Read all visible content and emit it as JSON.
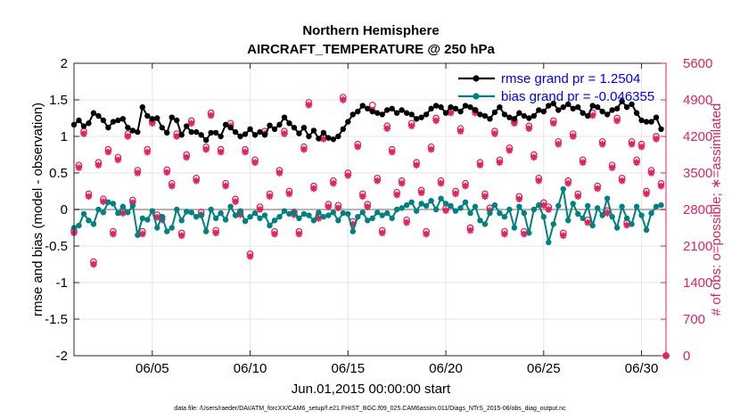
{
  "chart_data": {
    "type": "line",
    "title": "Northern Hemisphere",
    "subtitle": "AIRCRAFT_TEMPERATURE @ 250 hPa",
    "xlabel": "Jun.01,2015 00:00:00 start",
    "ylabel": "rmse and bias (model - observation)",
    "y2label": "# of obs: o=possible; ∗=assimilated",
    "footnote": "data file: /Users/raeder/DAI/ATM_forcXX/CAM6_setup/f.e21.FHIST_BGC.f09_025.CAM6assim.011/Diags_NTrS_2015-06/obs_diag_output.nc",
    "xlim": [
      1.0,
      31.25
    ],
    "ylim": [
      -2,
      2
    ],
    "y2lim": [
      0,
      5600
    ],
    "x_ticks": [
      5,
      10,
      15,
      20,
      25,
      30
    ],
    "x_tick_labels": [
      "06/05",
      "06/10",
      "06/15",
      "06/20",
      "06/25",
      "06/30"
    ],
    "y_ticks": [
      -2,
      -1.5,
      -1,
      -0.5,
      0,
      0.5,
      1,
      1.5,
      2
    ],
    "y_tick_labels": [
      "-2",
      "-1.5",
      "-1",
      "-0.5",
      "0",
      "0.5",
      "1",
      "1.5",
      "2"
    ],
    "y2_ticks": [
      0,
      700,
      1400,
      2100,
      2800,
      3500,
      4200,
      4900,
      5600
    ],
    "y2_tick_labels": [
      "0",
      "700",
      "1400",
      "2100",
      "2800",
      "3500",
      "4200",
      "4900",
      "5600"
    ],
    "grid": true,
    "legend_position": "top-right",
    "colors": {
      "rmse": "#000000",
      "bias": "#008080",
      "obs": "#e0245e",
      "zero_line": "#b4b4b4"
    },
    "series": [
      {
        "name": "rmse grand pr = 1.2504",
        "axis": "left",
        "color": "#000000",
        "x": [
          1.0,
          1.25,
          1.5,
          1.75,
          2.0,
          2.25,
          2.5,
          2.75,
          3.0,
          3.25,
          3.5,
          3.75,
          4.0,
          4.25,
          4.5,
          4.75,
          5.0,
          5.25,
          5.5,
          5.75,
          6.0,
          6.25,
          6.5,
          6.75,
          7.0,
          7.25,
          7.5,
          7.75,
          8.0,
          8.25,
          8.5,
          8.75,
          9.0,
          9.25,
          9.5,
          9.75,
          10.0,
          10.25,
          10.5,
          10.75,
          11.0,
          11.25,
          11.5,
          11.75,
          12.0,
          12.25,
          12.5,
          12.75,
          13.0,
          13.25,
          13.5,
          13.75,
          14.0,
          14.25,
          14.5,
          14.75,
          15.0,
          15.25,
          15.5,
          15.75,
          16.0,
          16.25,
          16.5,
          16.75,
          17.0,
          17.25,
          17.5,
          17.75,
          18.0,
          18.25,
          18.5,
          18.75,
          19.0,
          19.25,
          19.5,
          19.75,
          20.0,
          20.25,
          20.5,
          20.75,
          21.0,
          21.25,
          21.5,
          21.75,
          22.0,
          22.25,
          22.5,
          22.75,
          23.0,
          23.25,
          23.5,
          23.75,
          24.0,
          24.25,
          24.5,
          24.75,
          25.0,
          25.25,
          25.5,
          25.75,
          26.0,
          26.25,
          26.5,
          26.75,
          27.0,
          27.25,
          27.5,
          27.75,
          28.0,
          28.25,
          28.5,
          28.75,
          29.0,
          29.25,
          29.5,
          29.75,
          30.0,
          30.25,
          30.5,
          30.75,
          31.0
        ],
        "values": [
          1.16,
          1.22,
          1.14,
          1.18,
          1.32,
          1.28,
          1.22,
          1.12,
          1.2,
          1.22,
          1.24,
          1.12,
          1.08,
          1.06,
          1.4,
          1.28,
          1.24,
          1.25,
          1.12,
          1.05,
          1.26,
          1.22,
          1.02,
          1.14,
          1.06,
          1.06,
          1.02,
          0.95,
          1.05,
          1.05,
          1.0,
          1.16,
          1.12,
          1.06,
          1.0,
          1.03,
          1.1,
          1.02,
          1.06,
          1.02,
          1.15,
          1.1,
          1.16,
          1.26,
          1.18,
          1.12,
          1.04,
          1.12,
          1.0,
          1.08,
          0.97,
          1.05,
          0.98,
          0.96,
          1.0,
          1.1,
          1.2,
          1.3,
          1.34,
          1.42,
          1.38,
          1.34,
          1.32,
          1.3,
          1.36,
          1.38,
          1.32,
          1.36,
          1.32,
          1.3,
          1.24,
          1.26,
          1.3,
          1.38,
          1.42,
          1.4,
          1.32,
          1.4,
          1.38,
          1.34,
          1.42,
          1.4,
          1.36,
          1.3,
          1.28,
          1.24,
          1.33,
          1.4,
          1.3,
          1.26,
          1.24,
          1.32,
          1.28,
          1.25,
          1.28,
          1.36,
          1.34,
          1.42,
          1.45,
          1.36,
          1.4,
          1.44,
          1.38,
          1.4,
          1.32,
          1.28,
          1.42,
          1.4,
          1.34,
          1.3,
          1.36,
          1.38,
          1.48,
          1.4,
          1.44,
          1.32,
          1.22,
          1.2,
          1.2,
          1.26,
          1.1
        ]
      },
      {
        "name": "bias grand pr = -0.046355",
        "axis": "left",
        "color": "#008080",
        "x": [
          1.0,
          1.25,
          1.5,
          1.75,
          2.0,
          2.25,
          2.5,
          2.75,
          3.0,
          3.25,
          3.5,
          3.75,
          4.0,
          4.25,
          4.5,
          4.75,
          5.0,
          5.25,
          5.5,
          5.75,
          6.0,
          6.25,
          6.5,
          6.75,
          7.0,
          7.25,
          7.5,
          7.75,
          8.0,
          8.25,
          8.5,
          8.75,
          9.0,
          9.25,
          9.5,
          9.75,
          10.0,
          10.25,
          10.5,
          10.75,
          11.0,
          11.25,
          11.5,
          11.75,
          12.0,
          12.25,
          12.5,
          12.75,
          13.0,
          13.25,
          13.5,
          13.75,
          14.0,
          14.25,
          14.5,
          14.75,
          15.0,
          15.25,
          15.5,
          15.75,
          16.0,
          16.25,
          16.5,
          16.75,
          17.0,
          17.25,
          17.5,
          17.75,
          18.0,
          18.25,
          18.5,
          18.75,
          19.0,
          19.25,
          19.5,
          19.75,
          20.0,
          20.25,
          20.5,
          20.75,
          21.0,
          21.25,
          21.5,
          21.75,
          22.0,
          22.25,
          22.5,
          22.75,
          23.0,
          23.25,
          23.5,
          23.75,
          24.0,
          24.25,
          24.5,
          24.75,
          25.0,
          25.25,
          25.5,
          25.75,
          26.0,
          26.25,
          26.5,
          26.75,
          27.0,
          27.25,
          27.5,
          27.75,
          28.0,
          28.25,
          28.5,
          28.75,
          29.0,
          29.25,
          29.5,
          29.75,
          30.0,
          30.25,
          30.5,
          30.75,
          31.0
        ],
        "values": [
          -0.25,
          -0.22,
          -0.06,
          -0.15,
          -0.2,
          0.0,
          -0.04,
          0.1,
          0.08,
          -0.05,
          0.04,
          -0.04,
          0.05,
          -0.35,
          -0.12,
          -0.14,
          -0.02,
          -0.25,
          -0.1,
          -0.3,
          -0.25,
          0.0,
          -0.15,
          -0.03,
          -0.04,
          -0.1,
          -0.08,
          -0.3,
          0.0,
          -0.12,
          -0.05,
          -0.14,
          0.04,
          -0.08,
          -0.02,
          -0.16,
          -0.1,
          -0.05,
          -0.12,
          -0.08,
          -0.22,
          -0.15,
          -0.1,
          -0.02,
          -0.06,
          -0.04,
          -0.12,
          -0.06,
          -0.08,
          -0.15,
          -0.04,
          -0.1,
          -0.08,
          -0.04,
          -0.15,
          -0.05,
          -0.06,
          -0.3,
          -0.1,
          -0.04,
          -0.15,
          -0.12,
          -0.04,
          -0.08,
          -0.05,
          -0.12,
          0.0,
          0.02,
          0.06,
          0.1,
          -0.02,
          0.08,
          0.05,
          0.12,
          0.0,
          0.15,
          0.08,
          0.05,
          -0.02,
          0.02,
          0.1,
          -0.05,
          0.04,
          -0.15,
          -0.2,
          -0.05,
          0.06,
          -0.05,
          -0.1,
          0.0,
          -0.25,
          0.04,
          -0.05,
          -0.32,
          0.0,
          0.06,
          -0.1,
          -0.45,
          -0.2,
          0.05,
          0.28,
          -0.15,
          0.08,
          -0.06,
          -0.12,
          0.05,
          -0.22,
          0.02,
          -0.08,
          0.15,
          -0.1,
          -0.25,
          0.04,
          -0.12,
          -0.2,
          0.04,
          -0.08,
          -0.28,
          -0.05,
          0.04,
          0.06
        ]
      }
    ],
    "obs_counts": {
      "axis": "right",
      "x": [
        1.0,
        1.25,
        1.5,
        1.75,
        2.0,
        2.25,
        2.5,
        2.75,
        3.0,
        3.25,
        3.5,
        3.75,
        4.0,
        4.25,
        4.5,
        4.75,
        5.0,
        5.25,
        5.5,
        5.75,
        6.0,
        6.25,
        6.5,
        6.75,
        7.0,
        7.25,
        7.5,
        7.75,
        8.0,
        8.25,
        8.5,
        8.75,
        9.0,
        9.25,
        9.5,
        9.75,
        10.0,
        10.25,
        10.5,
        10.75,
        11.0,
        11.25,
        11.5,
        11.75,
        12.0,
        12.25,
        12.5,
        12.75,
        13.0,
        13.25,
        13.5,
        13.75,
        14.0,
        14.25,
        14.5,
        14.75,
        15.0,
        15.25,
        15.5,
        15.75,
        16.0,
        16.25,
        16.5,
        16.75,
        17.0,
        17.25,
        17.5,
        17.75,
        18.0,
        18.25,
        18.5,
        18.75,
        19.0,
        19.25,
        19.5,
        19.75,
        20.0,
        20.25,
        20.5,
        20.75,
        21.0,
        21.25,
        21.5,
        21.75,
        22.0,
        22.25,
        22.5,
        22.75,
        23.0,
        23.25,
        23.5,
        23.75,
        24.0,
        24.25,
        24.5,
        24.75,
        25.0,
        25.25,
        25.5,
        25.75,
        26.0,
        26.25,
        26.5,
        26.75,
        27.0,
        27.25,
        27.5,
        27.75,
        28.0,
        28.25,
        28.5,
        28.75,
        29.0,
        29.25,
        29.5,
        29.75,
        30.0,
        30.25,
        30.5,
        30.75,
        31.0
      ],
      "possible": [
        2400,
        3650,
        4300,
        3100,
        1800,
        3700,
        3000,
        3950,
        2380,
        3800,
        2780,
        4250,
        2980,
        3550,
        2380,
        3950,
        4500,
        2700,
        2650,
        3560,
        3300,
        4250,
        2350,
        3850,
        4500,
        3400,
        2750,
        4000,
        4650,
        2400,
        3950,
        3300,
        4450,
        3000,
        2750,
        3950,
        1950,
        3750,
        2850,
        4300,
        3100,
        2380,
        3550,
        4300,
        3150,
        2750,
        2380,
        4000,
        4850,
        3250,
        2680,
        4200,
        2900,
        3350,
        2880,
        4950,
        3500,
        2570,
        4050,
        3100,
        2900,
        4800,
        3400,
        2400,
        4400,
        3950,
        3130,
        3350,
        2600,
        4450,
        3700,
        3170,
        2380,
        4000,
        4550,
        3350,
        2830,
        4700,
        3150,
        4350,
        3300,
        2450,
        4700,
        3700,
        3100,
        2830,
        4300,
        3750,
        2380,
        3980,
        4500,
        3050,
        2380,
        4400,
        3850,
        3400,
        2930,
        2850,
        4500,
        4100,
        2350,
        3350,
        4250,
        3100,
        3750,
        2600,
        4650,
        3250,
        4100,
        2780,
        3650,
        4550,
        3400,
        2550,
        4100,
        3750,
        4050,
        3150,
        3550,
        4200,
        3300
      ],
      "assimilated": [
        2350,
        3600,
        4250,
        3050,
        1750,
        3650,
        2950,
        3900,
        2330,
        3750,
        2730,
        4200,
        2930,
        3500,
        2330,
        3900,
        4450,
        2650,
        2600,
        3510,
        3250,
        4200,
        2300,
        3800,
        4450,
        3350,
        2700,
        3950,
        4600,
        2350,
        3900,
        3250,
        4400,
        2950,
        2700,
        3900,
        1900,
        3700,
        2800,
        4250,
        3050,
        2330,
        3500,
        4250,
        3100,
        2700,
        2330,
        3950,
        4800,
        3200,
        2630,
        4150,
        2850,
        3300,
        2830,
        4900,
        3450,
        2520,
        4000,
        3050,
        2850,
        4700,
        3350,
        2350,
        4350,
        3900,
        3080,
        3300,
        2550,
        4400,
        3650,
        3120,
        2330,
        3950,
        4500,
        3300,
        2780,
        4650,
        3100,
        4300,
        3250,
        2400,
        4650,
        3650,
        3050,
        2780,
        4250,
        3700,
        2330,
        3930,
        4450,
        3000,
        2330,
        4350,
        3800,
        3350,
        2880,
        2800,
        4450,
        4050,
        2300,
        3300,
        4200,
        3050,
        3700,
        2550,
        4600,
        3200,
        4050,
        2730,
        3600,
        4500,
        3350,
        2500,
        4050,
        3700,
        4000,
        3100,
        3500,
        4150,
        3250
      ]
    },
    "right_axis_zero_marker": 0
  }
}
